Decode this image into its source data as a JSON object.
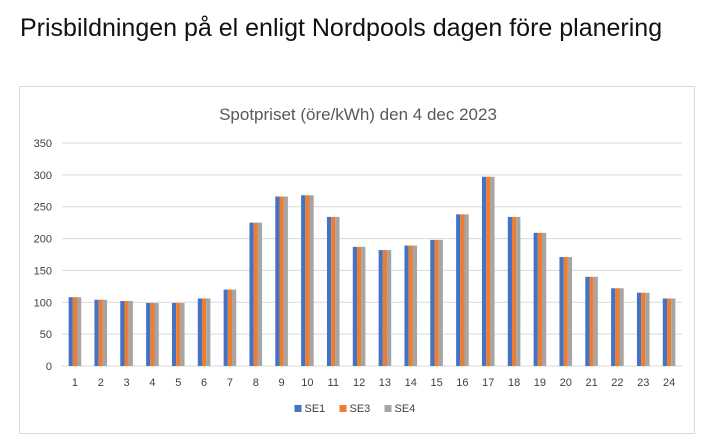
{
  "page": {
    "heading": "Prisbildningen på el enligt Nordpools dagen före planering"
  },
  "chart_data": {
    "type": "bar",
    "title": "Spotpriset (öre/kWh) den 4 dec 2023",
    "xlabel": "",
    "ylabel": "",
    "ylim": [
      0,
      350
    ],
    "yticks": [
      0,
      50,
      100,
      150,
      200,
      250,
      300,
      350
    ],
    "grid": true,
    "legend_position": "bottom",
    "categories": [
      "1",
      "2",
      "3",
      "4",
      "5",
      "6",
      "7",
      "8",
      "9",
      "10",
      "11",
      "12",
      "13",
      "14",
      "15",
      "16",
      "17",
      "18",
      "19",
      "20",
      "21",
      "22",
      "23",
      "24"
    ],
    "series": [
      {
        "name": "SE1",
        "color": "#4472c4",
        "values": [
          108,
          104,
          102,
          99,
          99,
          106,
          120,
          225,
          266,
          268,
          234,
          187,
          182,
          189,
          198,
          238,
          297,
          234,
          209,
          171,
          140,
          122,
          115,
          106
        ]
      },
      {
        "name": "SE3",
        "color": "#ed7d31",
        "values": [
          108,
          104,
          102,
          99,
          99,
          106,
          120,
          225,
          266,
          268,
          234,
          187,
          182,
          189,
          198,
          238,
          297,
          234,
          209,
          171,
          140,
          122,
          115,
          106
        ]
      },
      {
        "name": "SE4",
        "color": "#a5a5a5",
        "values": [
          108,
          104,
          102,
          99,
          99,
          106,
          120,
          225,
          266,
          268,
          234,
          187,
          182,
          189,
          198,
          238,
          297,
          234,
          209,
          171,
          140,
          122,
          115,
          106
        ]
      }
    ]
  }
}
